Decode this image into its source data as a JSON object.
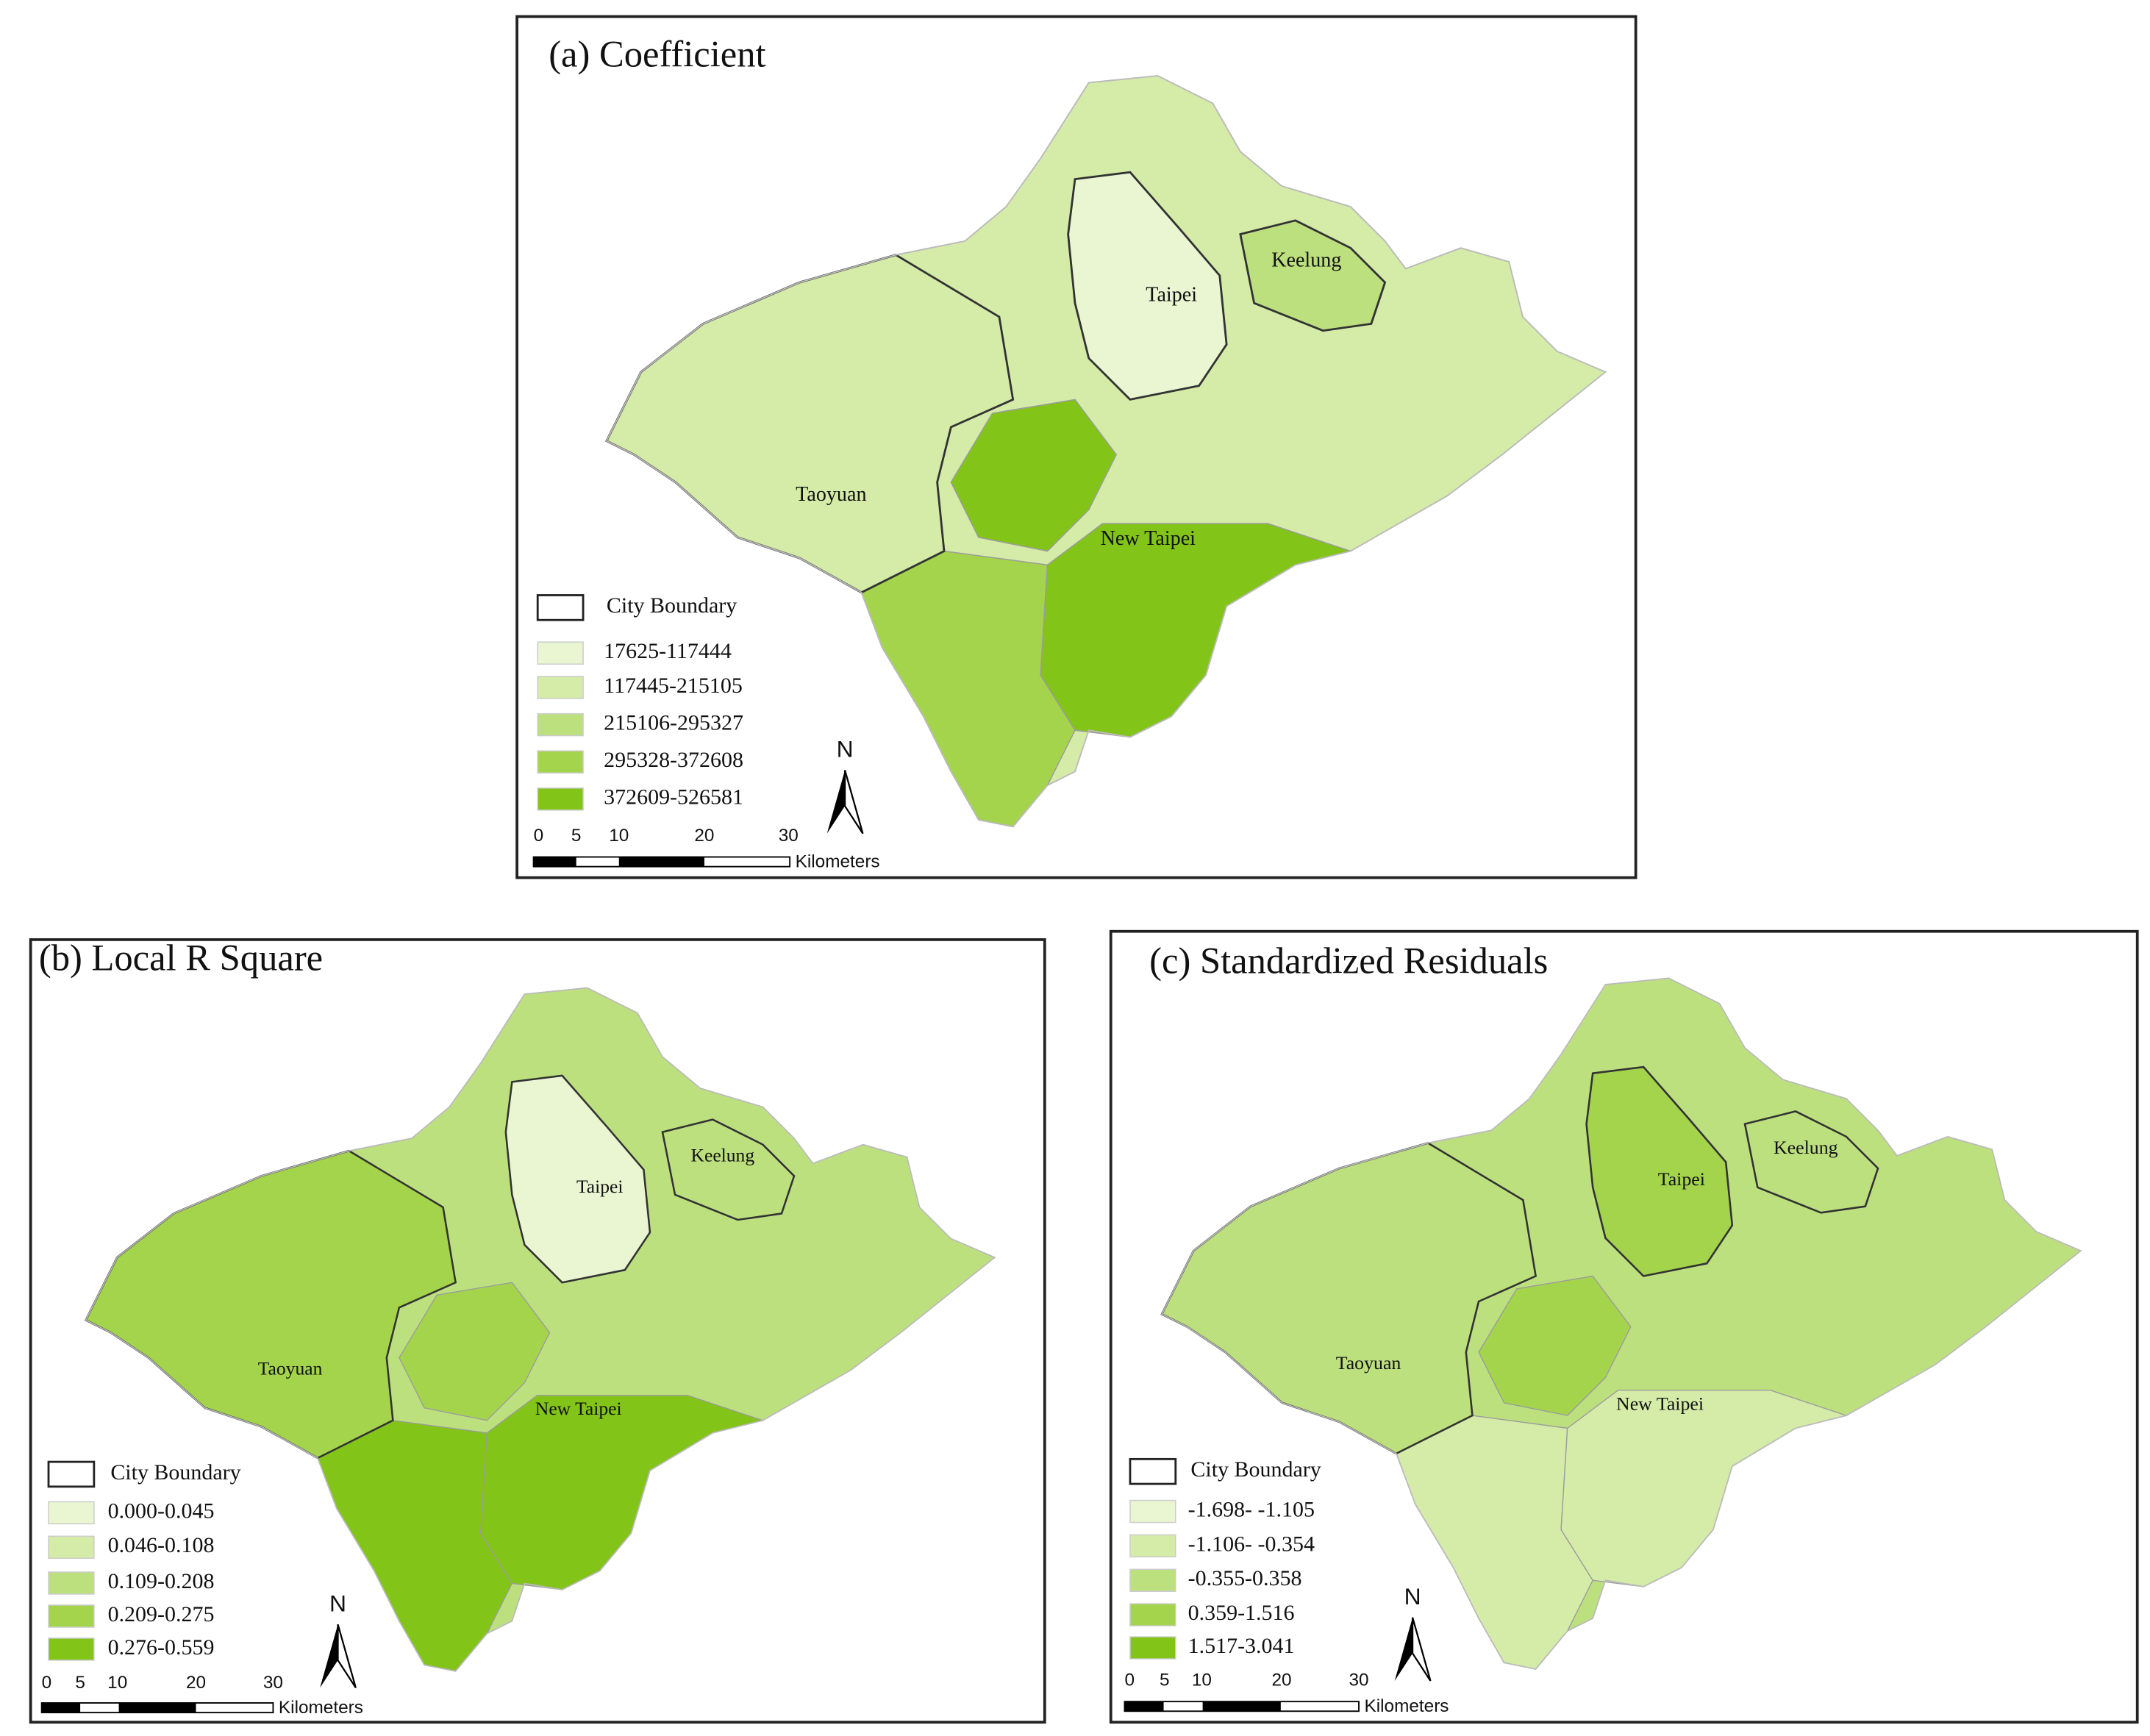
{
  "panels": [
    {
      "title": "(a) Coefficient",
      "boundary_label": "City Boundary",
      "legend": [
        {
          "label": "17625-117444",
          "color": "#eaf6d2"
        },
        {
          "label": "117445-215105",
          "color": "#d5eba8"
        },
        {
          "label": "215106-295327",
          "color": "#bde07f"
        },
        {
          "label": "295328-372608",
          "color": "#a3d44c"
        },
        {
          "label": "372609-526581",
          "color": "#82c418"
        }
      ],
      "cities": [
        "Taipei",
        "Keelung",
        "Taoyuan",
        "New Taipei"
      ],
      "scale": [
        0,
        5,
        10,
        20,
        30
      ],
      "scale_unit": "Kilometers",
      "north": "N"
    },
    {
      "title": "(b) Local R Square",
      "boundary_label": "City Boundary",
      "legend": [
        {
          "label": "0.000-0.045",
          "color": "#eaf6d2"
        },
        {
          "label": "0.046-0.108",
          "color": "#d5eba8"
        },
        {
          "label": "0.109-0.208",
          "color": "#bde07f"
        },
        {
          "label": "0.209-0.275",
          "color": "#a3d44c"
        },
        {
          "label": "0.276-0.559",
          "color": "#82c418"
        }
      ],
      "cities": [
        "Taipei",
        "Keelung",
        "Taoyuan",
        "New Taipei"
      ],
      "scale": [
        0,
        5,
        10,
        20,
        30
      ],
      "scale_unit": "Kilometers",
      "north": "N"
    },
    {
      "title": "(c) Standardized Residuals",
      "boundary_label": "City Boundary",
      "legend": [
        {
          "label": "-1.698- -1.105",
          "color": "#eaf6d2"
        },
        {
          "label": "-1.106- -0.354",
          "color": "#d5eba8"
        },
        {
          "label": "-0.355-0.358",
          "color": "#bde07f"
        },
        {
          "label": "0.359-1.516",
          "color": "#a3d44c"
        },
        {
          "label": "1.517-3.041",
          "color": "#82c418"
        }
      ],
      "cities": [
        "Taipei",
        "Keelung",
        "Taoyuan",
        "New Taipei"
      ],
      "scale": [
        0,
        5,
        10,
        20,
        30
      ],
      "scale_unit": "Kilometers",
      "north": "N"
    }
  ]
}
